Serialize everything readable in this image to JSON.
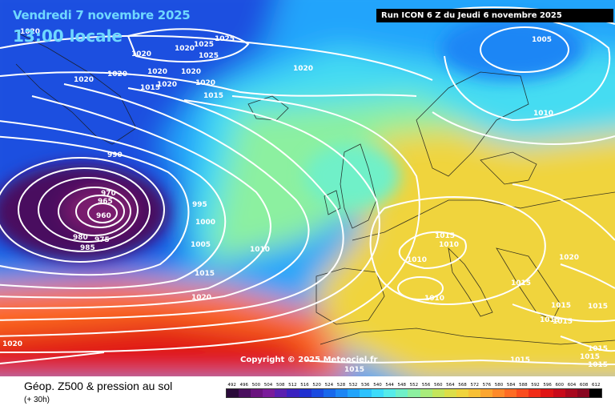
{
  "header": {
    "valid_date": "Vendredi 7 novembre 2025",
    "valid_time": "13:00 locale",
    "run_info": "Run ICON 6 Z du Jeudi 6 novembre 2025"
  },
  "copyright": "Copyright © 2025 Meteociel.fr",
  "legend": {
    "title": "Géop. Z500 & pression au sol",
    "subtitle": "(+ 30h)",
    "scale_values": [
      "492",
      "496",
      "500",
      "504",
      "508",
      "512",
      "516",
      "520",
      "524",
      "528",
      "532",
      "536",
      "540",
      "544",
      "548",
      "552",
      "556",
      "560",
      "564",
      "568",
      "572",
      "576",
      "580",
      "584",
      "588",
      "592",
      "596",
      "600",
      "604",
      "608",
      "612"
    ],
    "scale_colors": [
      "#2a0a3a",
      "#4a0f5e",
      "#6a137e",
      "#7a1b9a",
      "#5a1fb0",
      "#3a22c0",
      "#2030d0",
      "#1a4ae0",
      "#1868ec",
      "#1d86f5",
      "#22a4fb",
      "#2cc2fe",
      "#3ddcfb",
      "#55ecea",
      "#6ff0c8",
      "#8cf0a0",
      "#a8ec7c",
      "#c4e65c",
      "#dcde48",
      "#f0d43c",
      "#f8c036",
      "#fca630",
      "#fe8a2a",
      "#fe6c24",
      "#fa4c1e",
      "#f02c18",
      "#e01414",
      "#c80a1a",
      "#a8081e",
      "#880620",
      "#000000"
    ]
  },
  "map": {
    "fields": [
      {
        "name": "deep-low",
        "color": "#4a0f5e"
      },
      {
        "name": "low-core",
        "color": "#7a1b6e"
      },
      {
        "name": "polar-trough",
        "color": "#1d50e0"
      },
      {
        "name": "cold-air",
        "color": "#22a4fb"
      },
      {
        "name": "mid-air",
        "color": "#45dcf2"
      },
      {
        "name": "mild-air",
        "color": "#8cf0a0"
      },
      {
        "name": "warm-air",
        "color": "#f0d43c"
      },
      {
        "name": "hot-air",
        "color": "#fe6c24"
      },
      {
        "name": "subtropical-ridge",
        "color": "#e01414"
      }
    ],
    "isobar_labels": [
      {
        "name": "label-1020-greenland-a",
        "text": "1020"
      },
      {
        "name": "label-1020-greenland-b",
        "text": "1020"
      },
      {
        "name": "label-1020-greenland-c",
        "text": "1020"
      },
      {
        "name": "label-1020-greenland-d",
        "text": "1020"
      },
      {
        "name": "label-1025-greenland-a",
        "text": "1025"
      },
      {
        "name": "label-1025-greenland-b",
        "text": "1025"
      },
      {
        "name": "label-1025-greenland-c",
        "text": "1025"
      },
      {
        "name": "label-1020-greenland-e",
        "text": "1020"
      },
      {
        "name": "label-1020-greenland-f",
        "text": "1020"
      },
      {
        "name": "label-1015-greenland",
        "text": "1015"
      },
      {
        "name": "label-1020-greenland-g",
        "text": "1020"
      },
      {
        "name": "label-1020-greenland-h",
        "text": "1020"
      },
      {
        "name": "label-1020-greenland-i",
        "text": "1020"
      },
      {
        "name": "label-1015-greenland-b",
        "text": "1015"
      },
      {
        "name": "label-1020-atlantic-north",
        "text": "1020"
      },
      {
        "name": "label-1005-scandinavia",
        "text": "1005"
      },
      {
        "name": "label-1010-russia",
        "text": "1010"
      },
      {
        "name": "label-990",
        "text": "990"
      },
      {
        "name": "label-970",
        "text": "970"
      },
      {
        "name": "label-965",
        "text": "965"
      },
      {
        "name": "label-960",
        "text": "960"
      },
      {
        "name": "label-980",
        "text": "980"
      },
      {
        "name": "label-975",
        "text": "975"
      },
      {
        "name": "label-985",
        "text": "985"
      },
      {
        "name": "label-995",
        "text": "995"
      },
      {
        "name": "label-1000",
        "text": "1000"
      },
      {
        "name": "label-1005",
        "text": "1005"
      },
      {
        "name": "label-1010-atlantic",
        "text": "1010"
      },
      {
        "name": "label-1015-atlantic",
        "text": "1015"
      },
      {
        "name": "label-1020-atlantic",
        "text": "1020"
      },
      {
        "name": "label-1020-sw",
        "text": "1020"
      },
      {
        "name": "label-1015-europe-a",
        "text": "1015"
      },
      {
        "name": "label-1010-europe-a",
        "text": "1010"
      },
      {
        "name": "label-1010-europe-b",
        "text": "1010"
      },
      {
        "name": "label-1010-med",
        "text": "1010"
      },
      {
        "name": "label-1015-balkans",
        "text": "1015"
      },
      {
        "name": "label-1020-east",
        "text": "1020"
      },
      {
        "name": "label-1015-greece",
        "text": "1015"
      },
      {
        "name": "label-1015-aegean-a",
        "text": "1015"
      },
      {
        "name": "label-1015-aegean-b",
        "text": "1015"
      },
      {
        "name": "label-1015-turkey",
        "text": "1015"
      },
      {
        "name": "label-1015-north-africa-a",
        "text": "1015"
      },
      {
        "name": "label-1015-north-africa-b",
        "text": "1015"
      },
      {
        "name": "label-1015-se-a",
        "text": "1015"
      },
      {
        "name": "label-1015-se-b",
        "text": "1015"
      },
      {
        "name": "label-1015-se-c",
        "text": "1015"
      }
    ]
  }
}
